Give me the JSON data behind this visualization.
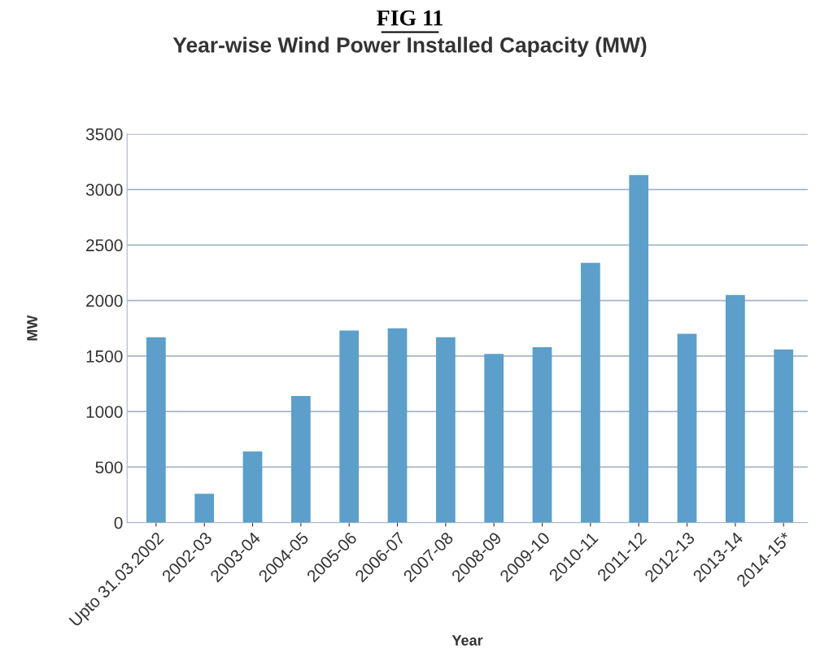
{
  "chart_data": {
    "type": "bar",
    "title": "FIG 11",
    "subtitle": "Year-wise Wind Power Installed Capacity (MW)",
    "xlabel": "Year",
    "ylabel": "MW",
    "categories": [
      "Upto 31.03.2002",
      "2002-03",
      "2003-04",
      "2004-05",
      "2005-06",
      "2006-07",
      "2007-08",
      "2008-09",
      "2009-10",
      "2010-11",
      "2011-12",
      "2012-13",
      "2013-14",
      "2014-15*"
    ],
    "values": [
      1670,
      260,
      640,
      1140,
      1730,
      1750,
      1670,
      1520,
      1580,
      2340,
      3130,
      1700,
      2050,
      1560
    ],
    "color": "#5b9fca",
    "ylim": [
      0,
      3500
    ],
    "yticks": [
      0,
      500,
      1000,
      1500,
      2000,
      2500,
      3000,
      3500
    ],
    "grid": "y"
  }
}
